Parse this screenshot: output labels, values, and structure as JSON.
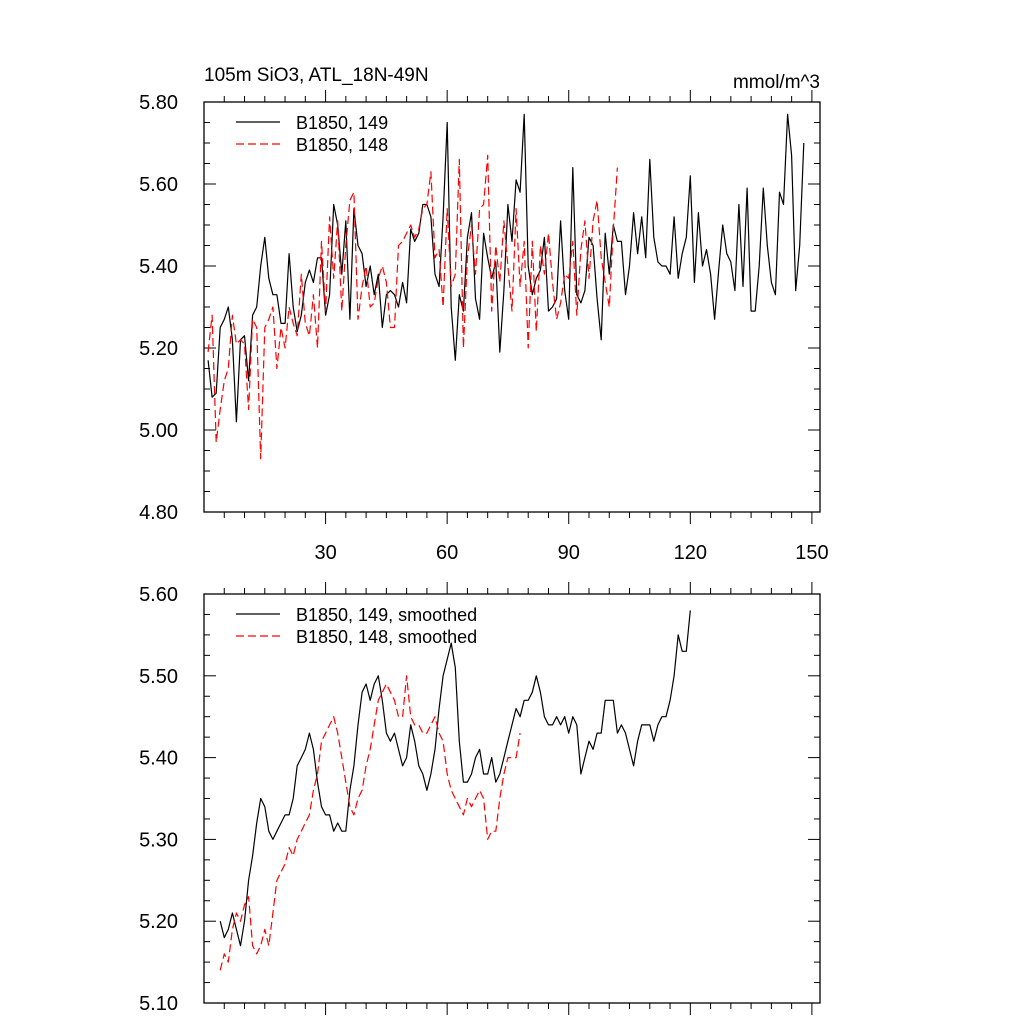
{
  "figure": {
    "title_left": "105m SiO3, ATL_18N-49N",
    "title_right": "mmol/m^3"
  },
  "chart_data": [
    {
      "type": "line",
      "title": "105m SiO3, ATL_18N-49N",
      "units": "mmol/m^3",
      "xlabel": "",
      "ylabel": "",
      "xlim": [
        0,
        152
      ],
      "ylim": [
        4.8,
        5.8
      ],
      "x_ticks": [
        30,
        60,
        90,
        120,
        150
      ],
      "x_tick_labels": [
        "30",
        "60",
        "90",
        "120",
        "150"
      ],
      "y_ticks": [
        4.8,
        5.0,
        5.2,
        5.4,
        5.6,
        5.8
      ],
      "y_tick_labels": [
        "4.80",
        "5.00",
        "5.20",
        "5.40",
        "5.60",
        "5.80"
      ],
      "legend_position": "top-left",
      "series": [
        {
          "name": "B1850, 149",
          "color": "#000000",
          "dash": "solid",
          "x_start": 1,
          "values": [
            5.17,
            5.08,
            5.09,
            5.25,
            5.27,
            5.3,
            5.22,
            5.02,
            5.22,
            5.23,
            5.12,
            5.28,
            5.3,
            5.4,
            5.47,
            5.37,
            5.33,
            5.33,
            5.26,
            5.26,
            5.43,
            5.3,
            5.24,
            5.28,
            5.36,
            5.39,
            5.36,
            5.42,
            5.42,
            5.28,
            5.33,
            5.55,
            5.5,
            5.38,
            5.51,
            5.27,
            5.54,
            5.45,
            5.43,
            5.35,
            5.4,
            5.33,
            5.38,
            5.25,
            5.33,
            5.34,
            5.33,
            5.3,
            5.36,
            5.31,
            5.49,
            5.46,
            5.48,
            5.55,
            5.55,
            5.52,
            5.38,
            5.35,
            5.52,
            5.75,
            5.3,
            5.17,
            5.33,
            5.29,
            5.47,
            5.53,
            5.32,
            5.27,
            5.48,
            5.42,
            5.37,
            5.41,
            5.19,
            5.34,
            5.55,
            5.46,
            5.61,
            5.58,
            5.77,
            5.4,
            5.33,
            5.37,
            5.39,
            5.47,
            5.29,
            5.3,
            5.32,
            5.51,
            5.34,
            5.27,
            5.64,
            5.33,
            5.31,
            5.34,
            5.47,
            5.45,
            5.32,
            5.22,
            5.48,
            5.38,
            5.5,
            5.46,
            5.46,
            5.33,
            5.4,
            5.53,
            5.43,
            5.52,
            5.42,
            5.66,
            5.47,
            5.41,
            5.4,
            5.4,
            5.38,
            5.52,
            5.37,
            5.43,
            5.47,
            5.62,
            5.36,
            5.53,
            5.4,
            5.44,
            5.38,
            5.27,
            5.39,
            5.5,
            5.43,
            5.41,
            5.34,
            5.55,
            5.35,
            5.59,
            5.29,
            5.29,
            5.4,
            5.59,
            5.45,
            5.36,
            5.33,
            5.58,
            5.55,
            5.77,
            5.67,
            5.34,
            5.45,
            5.7
          ]
        },
        {
          "name": "B1850, 148",
          "color": "#ff0000",
          "dash": "dashed",
          "x_start": 1,
          "values": [
            5.19,
            5.28,
            4.97,
            5.05,
            5.12,
            5.15,
            5.28,
            5.21,
            5.22,
            5.21,
            5.05,
            5.27,
            5.25,
            4.93,
            5.25,
            5.27,
            5.3,
            5.15,
            5.25,
            5.2,
            5.3,
            5.26,
            5.23,
            5.38,
            5.26,
            5.23,
            5.33,
            5.2,
            5.46,
            5.29,
            5.52,
            5.37,
            5.51,
            5.29,
            5.45,
            5.56,
            5.58,
            5.27,
            5.35,
            5.4,
            5.3,
            5.31,
            5.37,
            5.4,
            5.36,
            5.25,
            5.25,
            5.45,
            5.46,
            5.48,
            5.5,
            5.47,
            5.49,
            5.54,
            5.55,
            5.63,
            5.42,
            5.44,
            5.3,
            5.54,
            5.35,
            5.38,
            5.66,
            5.2,
            5.42,
            5.5,
            5.38,
            5.54,
            5.55,
            5.67,
            5.29,
            5.45,
            5.36,
            5.51,
            5.4,
            5.29,
            5.54,
            5.35,
            5.46,
            5.2,
            5.46,
            5.24,
            5.45,
            5.38,
            5.48,
            5.36,
            5.27,
            5.31,
            5.38,
            5.37,
            5.46,
            5.28,
            5.44,
            5.51,
            5.37,
            5.51,
            5.56,
            5.42,
            5.36,
            5.3,
            5.49,
            5.64
          ]
        }
      ]
    },
    {
      "type": "line",
      "title": "",
      "xlabel": "",
      "ylabel": "",
      "xlim": [
        0,
        152
      ],
      "ylim": [
        5.1,
        5.6
      ],
      "x_ticks": [
        30,
        60,
        90,
        120,
        150
      ],
      "x_tick_labels": [],
      "y_ticks": [
        5.1,
        5.2,
        5.3,
        5.4,
        5.5,
        5.6
      ],
      "y_tick_labels": [
        "5.10",
        "5.20",
        "5.30",
        "5.40",
        "5.50",
        "5.60"
      ],
      "legend_position": "top-left",
      "series": [
        {
          "name": "B1850, 149, smoothed",
          "color": "#000000",
          "dash": "solid",
          "x_start": 4,
          "values": [
            5.2,
            5.18,
            5.19,
            5.21,
            5.19,
            5.17,
            5.2,
            5.25,
            5.28,
            5.32,
            5.35,
            5.34,
            5.31,
            5.3,
            5.31,
            5.32,
            5.33,
            5.33,
            5.35,
            5.39,
            5.4,
            5.41,
            5.43,
            5.41,
            5.37,
            5.34,
            5.33,
            5.33,
            5.31,
            5.32,
            5.31,
            5.31,
            5.36,
            5.39,
            5.44,
            5.48,
            5.49,
            5.47,
            5.49,
            5.5,
            5.47,
            5.43,
            5.42,
            5.43,
            5.41,
            5.39,
            5.4,
            5.44,
            5.42,
            5.39,
            5.38,
            5.36,
            5.38,
            5.41,
            5.46,
            5.5,
            5.52,
            5.54,
            5.51,
            5.42,
            5.37,
            5.37,
            5.38,
            5.4,
            5.41,
            5.38,
            5.38,
            5.4,
            5.37,
            5.38,
            5.4,
            5.42,
            5.44,
            5.46,
            5.45,
            5.47,
            5.47,
            5.48,
            5.5,
            5.48,
            5.45,
            5.44,
            5.44,
            5.45,
            5.44,
            5.45,
            5.43,
            5.45,
            5.44,
            5.38,
            5.4,
            5.42,
            5.41,
            5.43,
            5.43,
            5.47,
            5.47,
            5.47,
            5.43,
            5.44,
            5.43,
            5.41,
            5.39,
            5.42,
            5.44,
            5.44,
            5.44,
            5.42,
            5.44,
            5.45,
            5.45,
            5.47,
            5.5,
            5.55,
            5.53,
            5.53,
            5.58
          ]
        },
        {
          "name": "B1850, 148, smoothed",
          "color": "#ff0000",
          "dash": "dashed",
          "x_start": 4,
          "values": [
            5.14,
            5.16,
            5.15,
            5.19,
            5.21,
            5.2,
            5.22,
            5.23,
            5.17,
            5.16,
            5.17,
            5.19,
            5.17,
            5.21,
            5.25,
            5.26,
            5.27,
            5.29,
            5.28,
            5.3,
            5.31,
            5.32,
            5.33,
            5.36,
            5.38,
            5.42,
            5.43,
            5.44,
            5.45,
            5.43,
            5.4,
            5.37,
            5.34,
            5.33,
            5.35,
            5.36,
            5.39,
            5.41,
            5.44,
            5.47,
            5.48,
            5.49,
            5.48,
            5.47,
            5.45,
            5.45,
            5.5,
            5.45,
            5.44,
            5.44,
            5.43,
            5.43,
            5.44,
            5.45,
            5.43,
            5.42,
            5.38,
            5.36,
            5.35,
            5.34,
            5.33,
            5.35,
            5.34,
            5.35,
            5.36,
            5.35,
            5.3,
            5.31,
            5.31,
            5.35,
            5.38,
            5.4,
            5.4,
            5.4,
            5.43
          ]
        }
      ]
    }
  ]
}
